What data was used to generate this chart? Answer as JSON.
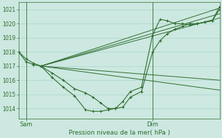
{
  "title": "Pression niveau de la mer( hPa )",
  "xlabel_sam": "Sam",
  "xlabel_dim": "Dim",
  "background_color": "#cce8e0",
  "grid_color": "#aad4cc",
  "line_color": "#2d6b2d",
  "ylim": [
    1013.3,
    1021.5
  ],
  "yticks": [
    1014,
    1015,
    1016,
    1017,
    1018,
    1019,
    1020,
    1021
  ],
  "xlim": [
    0,
    54
  ],
  "sam_x": 2,
  "dim_x": 36,
  "figsize": [
    3.2,
    2.0
  ],
  "dpi": 100,
  "fan_lines": [
    [
      [
        6,
        1017.0
      ],
      [
        54,
        1021.1
      ]
    ],
    [
      [
        6,
        1017.0
      ],
      [
        54,
        1020.7
      ]
    ],
    [
      [
        6,
        1017.0
      ],
      [
        54,
        1020.4
      ]
    ],
    [
      [
        6,
        1017.0
      ],
      [
        54,
        1015.3
      ]
    ],
    [
      [
        6,
        1017.0
      ],
      [
        54,
        1016.0
      ]
    ]
  ],
  "detail_series_1": {
    "x": [
      0,
      2,
      4,
      6,
      9,
      12,
      15,
      18,
      20,
      22,
      24,
      26,
      28,
      30,
      33,
      36,
      38,
      40,
      42,
      44,
      46,
      48,
      50,
      52,
      54
    ],
    "y": [
      1018.0,
      1017.5,
      1017.2,
      1017.0,
      1016.5,
      1016.0,
      1015.4,
      1015.1,
      1014.8,
      1014.4,
      1014.0,
      1014.0,
      1014.1,
      1014.8,
      1015.2,
      1018.0,
      1018.8,
      1019.3,
      1019.6,
      1019.8,
      1020.0,
      1020.0,
      1020.1,
      1020.2,
      1021.0
    ]
  },
  "detail_series_2": {
    "x": [
      0,
      2,
      4,
      6,
      9,
      12,
      15,
      18,
      20,
      22,
      24,
      26,
      28,
      30,
      33,
      36,
      38,
      40,
      42,
      44,
      46,
      48,
      50,
      52,
      54
    ],
    "y": [
      1018.0,
      1017.3,
      1017.1,
      1017.0,
      1016.2,
      1015.5,
      1014.9,
      1013.9,
      1013.8,
      1013.8,
      1013.9,
      1014.0,
      1014.5,
      1015.2,
      1015.5,
      1019.2,
      1020.3,
      1020.2,
      1020.0,
      1020.0,
      1019.9,
      1020.0,
      1020.1,
      1020.2,
      1021.2
    ]
  }
}
